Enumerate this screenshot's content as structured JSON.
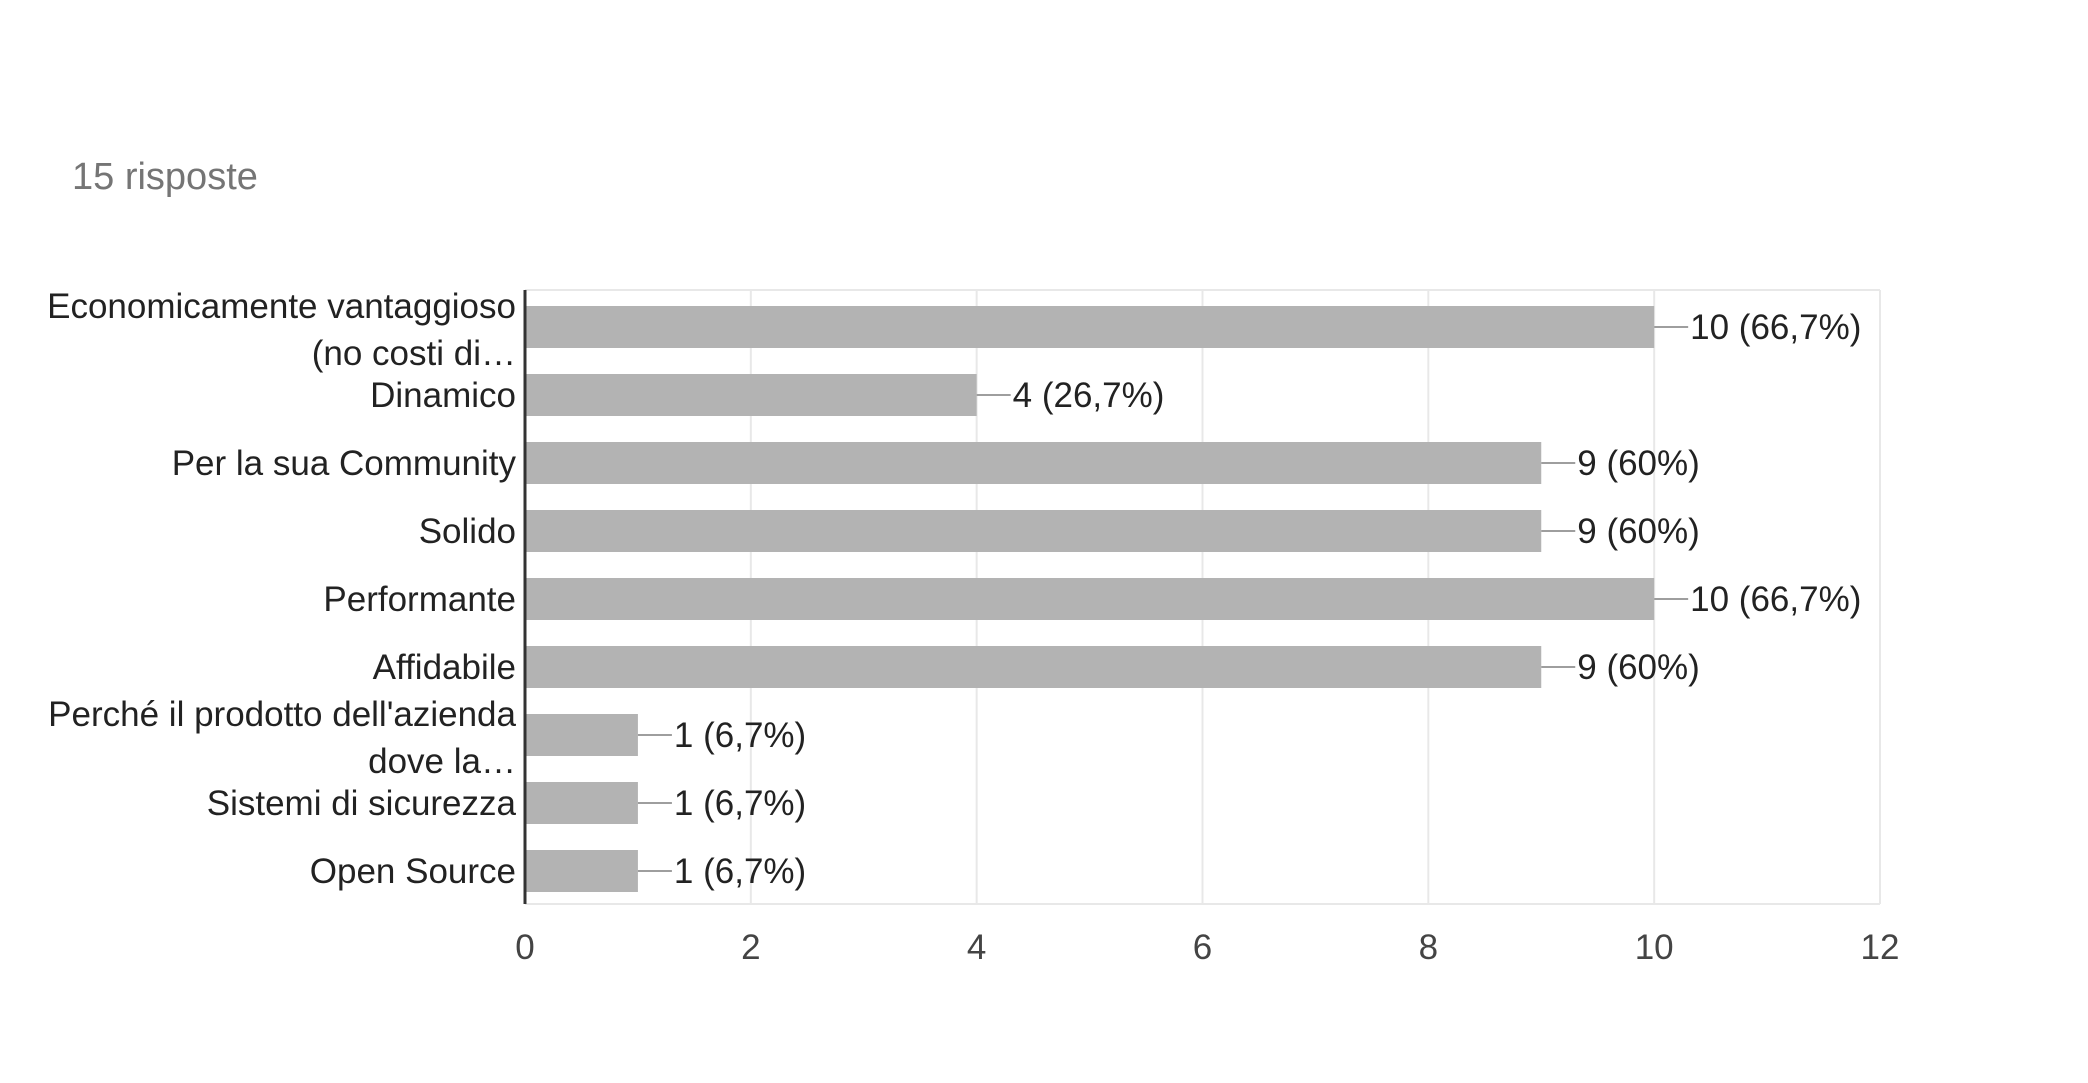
{
  "header": {
    "response_count": "15 risposte"
  },
  "colors": {
    "bar": "#b3b3b3",
    "grid": "#e8e8e8",
    "axis": "#333333",
    "leader": "#9e9e9e"
  },
  "chart_data": {
    "type": "bar",
    "orientation": "horizontal",
    "title": "",
    "xlabel": "",
    "ylabel": "",
    "xlim": [
      0,
      12
    ],
    "x_ticks": [
      "0",
      "2",
      "4",
      "6",
      "8",
      "10",
      "12"
    ],
    "grid": true,
    "categories": [
      [
        "Economicamente vantaggioso",
        "(no costi di…"
      ],
      [
        "Dinamico"
      ],
      [
        "Per la sua Community"
      ],
      [
        "Solido"
      ],
      [
        "Performante"
      ],
      [
        "Affidabile"
      ],
      [
        "Perché il prodotto dell'azienda",
        "dove la…"
      ],
      [
        "Sistemi di sicurezza"
      ],
      [
        "Open Source"
      ]
    ],
    "values": [
      10,
      4,
      9,
      9,
      10,
      9,
      1,
      1,
      1
    ],
    "data_labels": [
      "10 (66,7%)",
      "4 (26,7%)",
      "9 (60%)",
      "9 (60%)",
      "10 (66,7%)",
      "9 (60%)",
      "1 (6,7%)",
      "1 (6,7%)",
      "1 (6,7%)"
    ]
  }
}
